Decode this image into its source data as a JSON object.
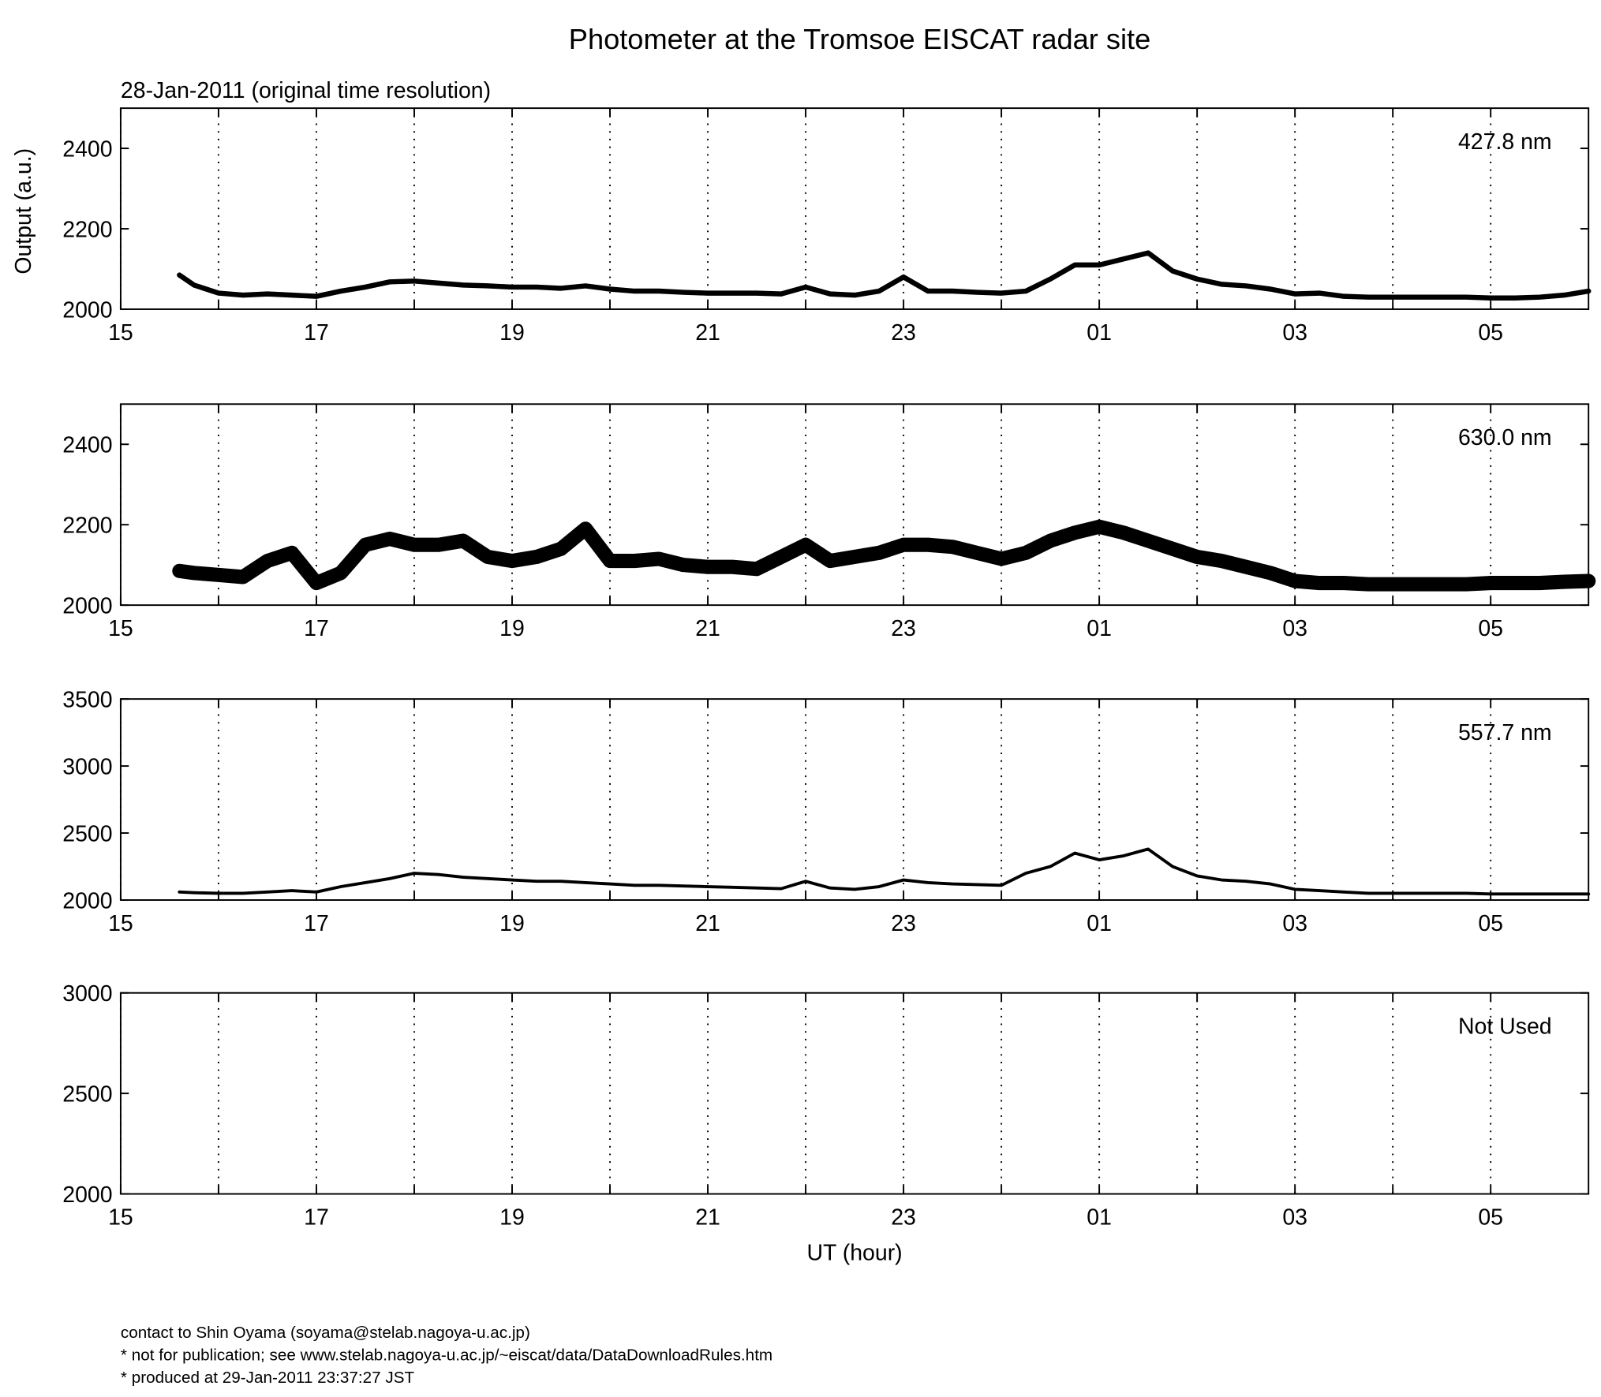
{
  "footer": [
    "contact to Shin Oyama (soyama@stelab.nagoya-u.ac.jp)",
    "* not for publication; see www.stelab.nagoya-u.ac.jp/~eiscat/data/DataDownloadRules.htm",
    "* produced at 29-Jan-2011 23:37:27 JST"
  ],
  "chart_data": [
    {
      "type": "line",
      "title": "Photometer at the Tromsoe EISCAT radar site",
      "subtitle": "28-Jan-2011 (original time resolution)",
      "y_label": "Output (a.u.)",
      "annotation": "427.8 nm",
      "x": [
        15.6,
        15.75,
        16,
        16.25,
        16.5,
        16.75,
        17,
        17.25,
        17.5,
        17.75,
        18,
        18.25,
        18.5,
        18.75,
        19,
        19.25,
        19.5,
        19.75,
        20,
        20.25,
        20.5,
        20.75,
        21,
        21.25,
        21.5,
        21.75,
        22,
        22.25,
        22.5,
        22.75,
        23,
        23.25,
        23.5,
        23.75,
        24,
        24.25,
        24.5,
        24.75,
        25,
        25.25,
        25.5,
        25.75,
        26,
        26.25,
        26.5,
        26.75,
        27,
        27.25,
        27.5,
        27.75,
        28,
        28.25,
        28.5,
        28.75,
        29,
        29.25,
        29.5,
        29.75,
        30
      ],
      "series": [
        {
          "color": "#000000",
          "line_width": 5,
          "values": [
            2085,
            2060,
            2040,
            2035,
            2038,
            2035,
            2032,
            2045,
            2055,
            2068,
            2070,
            2065,
            2060,
            2058,
            2055,
            2055,
            2052,
            2058,
            2050,
            2045,
            2045,
            2042,
            2040,
            2040,
            2040,
            2038,
            2055,
            2038,
            2035,
            2045,
            2080,
            2045,
            2045,
            2042,
            2040,
            2045,
            2075,
            2110,
            2110,
            2125,
            2140,
            2095,
            2075,
            2062,
            2058,
            2050,
            2038,
            2040,
            2032,
            2030,
            2030,
            2030,
            2030,
            2030,
            2028,
            2028,
            2030,
            2035,
            2045
          ]
        }
      ],
      "xlim": [
        15,
        30
      ],
      "ylim": [
        2000,
        2500
      ],
      "yticks": [
        2000,
        2200,
        2400
      ],
      "xticks": [
        15,
        17,
        19,
        21,
        23,
        {
          "value": 25,
          "label": "01"
        },
        {
          "value": 27,
          "label": "03"
        },
        {
          "value": 29,
          "label": "05"
        }
      ],
      "xminor_ticks": [
        16,
        18,
        20,
        22,
        24,
        26,
        28
      ],
      "grid": true
    },
    {
      "type": "line",
      "annotation": "630.0 nm",
      "x": [
        15.6,
        15.75,
        16,
        16.25,
        16.5,
        16.75,
        17,
        17.25,
        17.5,
        17.75,
        18,
        18.25,
        18.5,
        18.75,
        19,
        19.25,
        19.5,
        19.75,
        20,
        20.25,
        20.5,
        20.75,
        21,
        21.25,
        21.5,
        21.75,
        22,
        22.25,
        22.5,
        22.75,
        23,
        23.25,
        23.5,
        23.75,
        24,
        24.25,
        24.5,
        24.75,
        25,
        25.25,
        25.5,
        25.75,
        26,
        26.25,
        26.5,
        26.75,
        27,
        27.25,
        27.5,
        27.75,
        28,
        28.25,
        28.5,
        28.75,
        29,
        29.25,
        29.5,
        29.75,
        30
      ],
      "series": [
        {
          "color": "#000000",
          "line_width": 14,
          "values": [
            2085,
            2080,
            2075,
            2070,
            2110,
            2130,
            2055,
            2080,
            2150,
            2165,
            2150,
            2150,
            2160,
            2120,
            2110,
            2120,
            2140,
            2190,
            2110,
            2110,
            2115,
            2100,
            2095,
            2095,
            2090,
            2120,
            2150,
            2110,
            2120,
            2130,
            2150,
            2150,
            2145,
            2130,
            2115,
            2130,
            2160,
            2180,
            2195,
            2180,
            2160,
            2140,
            2120,
            2110,
            2095,
            2080,
            2060,
            2055,
            2055,
            2052,
            2052,
            2052,
            2052,
            2052,
            2055,
            2055,
            2055,
            2058,
            2060
          ]
        }
      ],
      "xlim": [
        15,
        30
      ],
      "ylim": [
        2000,
        2500
      ],
      "yticks": [
        2000,
        2200,
        2400
      ],
      "xticks": [
        15,
        17,
        19,
        21,
        23,
        {
          "value": 25,
          "label": "01"
        },
        {
          "value": 27,
          "label": "03"
        },
        {
          "value": 29,
          "label": "05"
        }
      ],
      "xminor_ticks": [
        16,
        18,
        20,
        22,
        24,
        26,
        28
      ],
      "grid": true
    },
    {
      "type": "line",
      "annotation": "557.7 nm",
      "x": [
        15.6,
        15.75,
        16,
        16.25,
        16.5,
        16.75,
        17,
        17.25,
        17.5,
        17.75,
        18,
        18.25,
        18.5,
        18.75,
        19,
        19.25,
        19.5,
        19.75,
        20,
        20.25,
        20.5,
        20.75,
        21,
        21.25,
        21.5,
        21.75,
        22,
        22.25,
        22.5,
        22.75,
        23,
        23.25,
        23.5,
        23.75,
        24,
        24.25,
        24.5,
        24.75,
        25,
        25.25,
        25.5,
        25.75,
        26,
        26.25,
        26.5,
        26.75,
        27,
        27.25,
        27.5,
        27.75,
        28,
        28.25,
        28.5,
        28.75,
        29,
        29.25,
        29.5,
        29.75,
        30
      ],
      "series": [
        {
          "color": "#000000",
          "line_width": 3,
          "values": [
            2060,
            2055,
            2050,
            2050,
            2060,
            2070,
            2060,
            2100,
            2130,
            2160,
            2200,
            2190,
            2170,
            2160,
            2150,
            2140,
            2140,
            2130,
            2120,
            2110,
            2110,
            2105,
            2100,
            2095,
            2090,
            2085,
            2140,
            2090,
            2080,
            2100,
            2150,
            2130,
            2120,
            2115,
            2110,
            2200,
            2250,
            2350,
            2300,
            2330,
            2380,
            2250,
            2180,
            2150,
            2140,
            2120,
            2080,
            2070,
            2060,
            2050,
            2050,
            2050,
            2050,
            2050,
            2045,
            2045,
            2045,
            2045,
            2045
          ]
        }
      ],
      "xlim": [
        15,
        30
      ],
      "ylim": [
        2000,
        3500
      ],
      "yticks": [
        2000,
        2500,
        3000,
        3500
      ],
      "xticks": [
        15,
        17,
        19,
        21,
        23,
        {
          "value": 25,
          "label": "01"
        },
        {
          "value": 27,
          "label": "03"
        },
        {
          "value": 29,
          "label": "05"
        }
      ],
      "xminor_ticks": [
        16,
        18,
        20,
        22,
        24,
        26,
        28
      ],
      "grid": true
    },
    {
      "type": "line",
      "annotation": "Not Used",
      "x_label": "UT (hour)",
      "series": [],
      "xlim": [
        15,
        30
      ],
      "ylim": [
        2000,
        3000
      ],
      "yticks": [
        2000,
        2500,
        3000
      ],
      "xticks": [
        15,
        17,
        19,
        21,
        23,
        {
          "value": 25,
          "label": "01"
        },
        {
          "value": 27,
          "label": "03"
        },
        {
          "value": 29,
          "label": "05"
        }
      ],
      "xminor_ticks": [
        16,
        18,
        20,
        22,
        24,
        26,
        28
      ],
      "grid": true
    }
  ]
}
